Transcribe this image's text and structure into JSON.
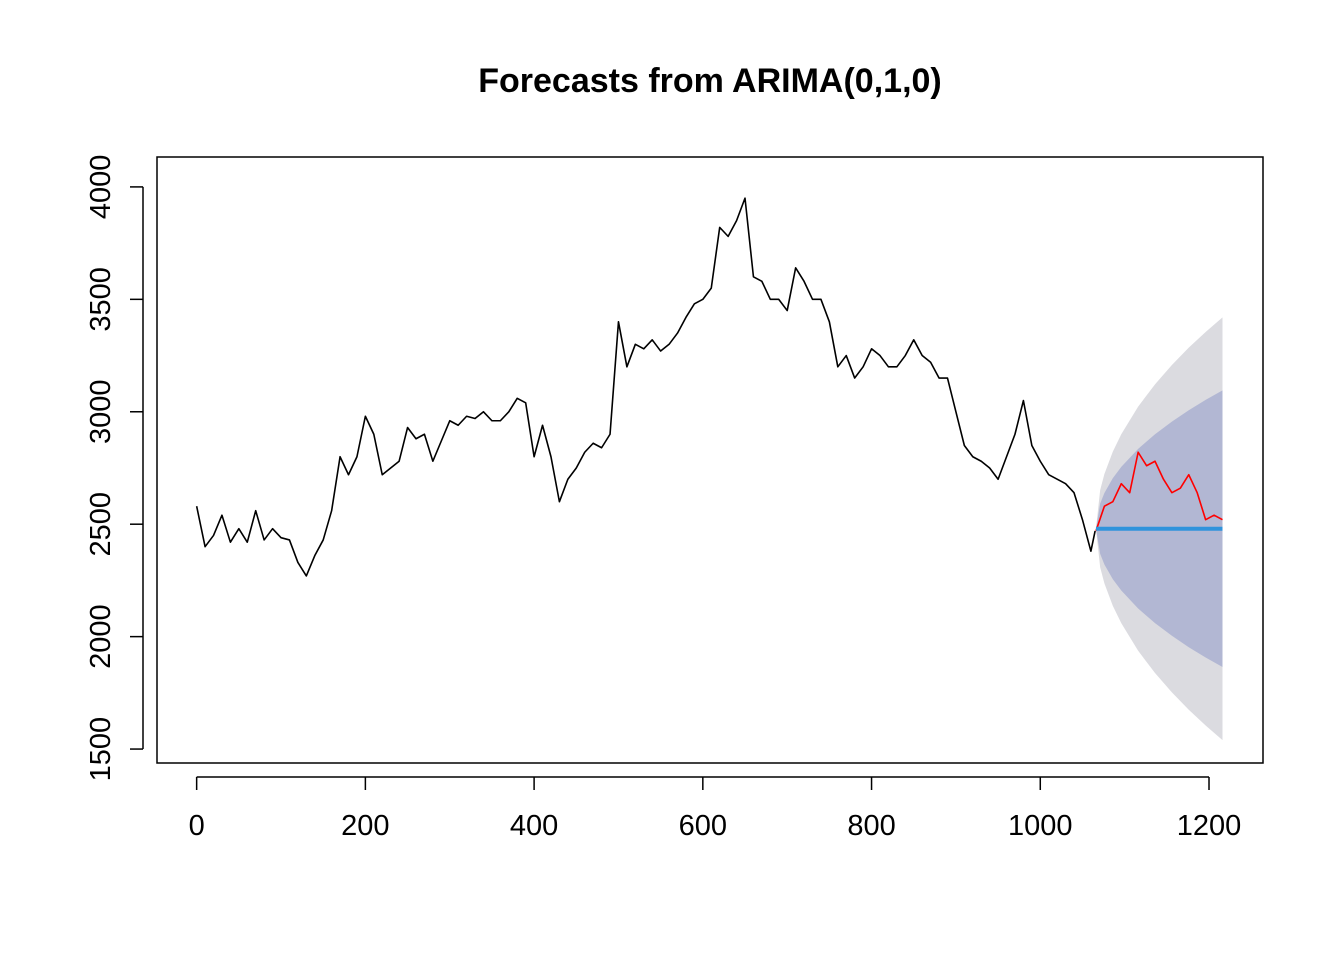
{
  "chart_data": {
    "type": "line",
    "title": "Forecasts from ARIMA(0,1,0)",
    "xlim": [
      -47,
      1264
    ],
    "ylim": [
      1438,
      4133
    ],
    "xticks": [
      0,
      200,
      400,
      600,
      800,
      1000,
      1200
    ],
    "yticks": [
      1500,
      2000,
      2500,
      3000,
      3500,
      4000
    ],
    "bands": [
      {
        "color": "#dbdbe0",
        "x": [
          1066,
          1071,
          1076,
          1086,
          1096,
          1116,
          1136,
          1156,
          1176,
          1196,
          1216
        ],
        "upper": [
          2480,
          2652,
          2723,
          2823,
          2900,
          3023,
          3122,
          3208,
          3285,
          3355,
          3420
        ],
        "lower": [
          2480,
          2308,
          2237,
          2137,
          2060,
          1937,
          1838,
          1752,
          1675,
          1605,
          1540
        ]
      },
      {
        "color": "#b2b7d3",
        "x": [
          1066,
          1071,
          1076,
          1086,
          1096,
          1116,
          1136,
          1156,
          1176,
          1196,
          1216
        ],
        "upper": [
          2480,
          2592,
          2639,
          2705,
          2755,
          2835,
          2900,
          2956,
          3007,
          3053,
          3095
        ],
        "lower": [
          2480,
          2368,
          2321,
          2255,
          2205,
          2125,
          2060,
          2004,
          1953,
          1907,
          1865
        ]
      }
    ],
    "series": [
      {
        "color": "#000000",
        "width": 1.6,
        "x": [
          0,
          10,
          20,
          30,
          40,
          50,
          60,
          70,
          80,
          90,
          100,
          110,
          120,
          130,
          140,
          150,
          160,
          170,
          180,
          190,
          200,
          210,
          220,
          230,
          240,
          250,
          260,
          270,
          280,
          290,
          300,
          310,
          320,
          330,
          340,
          350,
          360,
          370,
          380,
          390,
          400,
          410,
          420,
          430,
          440,
          450,
          460,
          470,
          480,
          490,
          500,
          510,
          520,
          530,
          540,
          550,
          560,
          570,
          580,
          590,
          600,
          610,
          620,
          630,
          640,
          650,
          660,
          670,
          680,
          690,
          700,
          710,
          720,
          730,
          740,
          750,
          760,
          770,
          780,
          790,
          800,
          810,
          820,
          830,
          840,
          850,
          860,
          870,
          880,
          890,
          900,
          910,
          920,
          930,
          940,
          950,
          960,
          970,
          980,
          990,
          1000,
          1010,
          1020,
          1030,
          1040,
          1050,
          1060,
          1065
        ],
        "values": [
          2580,
          2400,
          2450,
          2540,
          2420,
          2480,
          2420,
          2560,
          2430,
          2480,
          2440,
          2430,
          2330,
          2270,
          2360,
          2430,
          2560,
          2800,
          2720,
          2800,
          2980,
          2900,
          2720,
          2750,
          2780,
          2930,
          2880,
          2900,
          2780,
          2870,
          2960,
          2940,
          2980,
          2970,
          3000,
          2960,
          2960,
          3000,
          3060,
          3040,
          2800,
          2940,
          2800,
          2600,
          2700,
          2750,
          2820,
          2860,
          2840,
          2900,
          3400,
          3200,
          3300,
          3280,
          3320,
          3270,
          3300,
          3350,
          3420,
          3480,
          3500,
          3550,
          3820,
          3780,
          3850,
          3950,
          3600,
          3580,
          3500,
          3500,
          3450,
          3640,
          3580,
          3500,
          3500,
          3400,
          3200,
          3250,
          3150,
          3200,
          3280,
          3250,
          3200,
          3200,
          3250,
          3320,
          3250,
          3220,
          3150,
          3150,
          3000,
          2850,
          2800,
          2780,
          2750,
          2700,
          2800,
          2900,
          3050,
          2850,
          2780,
          2720,
          2700,
          2680,
          2640,
          2520,
          2380,
          2470
        ]
      },
      {
        "color": "#ff0000",
        "width": 1.6,
        "x": [
          1066,
          1076,
          1086,
          1096,
          1106,
          1116,
          1126,
          1136,
          1146,
          1156,
          1166,
          1176,
          1186,
          1196,
          1206,
          1216
        ],
        "values": [
          2470,
          2580,
          2600,
          2680,
          2640,
          2820,
          2760,
          2780,
          2700,
          2640,
          2660,
          2720,
          2640,
          2520,
          2540,
          2520
        ]
      },
      {
        "color": "#2f93dc",
        "width": 4,
        "x": [
          1066,
          1216
        ],
        "values": [
          2480,
          2480
        ]
      }
    ]
  }
}
